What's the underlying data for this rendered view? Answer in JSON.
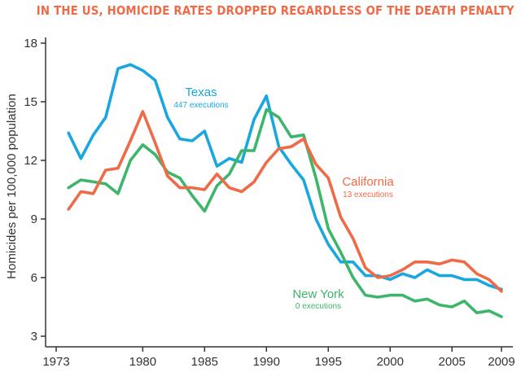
{
  "chart_data": {
    "type": "line",
    "title": "IN THE US, HOMICIDE RATES DROPPED REGARDLESS OF THE DEATH PENALTY",
    "xlabel": "",
    "ylabel": "Homicides per 100,000 population",
    "xlim": [
      1973,
      2009
    ],
    "ylim": [
      3,
      18
    ],
    "x_ticks": [
      1973,
      1980,
      1985,
      1990,
      1995,
      2000,
      2005,
      2009
    ],
    "y_ticks": [
      3,
      6,
      9,
      12,
      15,
      18
    ],
    "grid": false,
    "legend": "inline labels next to each line",
    "x": [
      1974,
      1975,
      1976,
      1977,
      1978,
      1979,
      1980,
      1981,
      1982,
      1983,
      1984,
      1985,
      1986,
      1987,
      1988,
      1989,
      1990,
      1991,
      1992,
      1993,
      1994,
      1995,
      1996,
      1997,
      1998,
      1999,
      2000,
      2001,
      2002,
      2003,
      2004,
      2005,
      2006,
      2007,
      2008,
      2009
    ],
    "series": [
      {
        "name": "Texas",
        "note": "447 executions",
        "color": "#1aa7e0",
        "values": [
          13.4,
          12.1,
          13.3,
          14.2,
          16.7,
          16.9,
          16.6,
          16.1,
          14.2,
          13.1,
          13.0,
          13.5,
          11.7,
          12.1,
          11.9,
          14.1,
          15.3,
          12.7,
          11.8,
          11.0,
          9.0,
          7.7,
          6.8,
          6.8,
          6.1,
          6.1,
          5.9,
          6.2,
          6.0,
          6.4,
          6.1,
          6.1,
          5.9,
          5.9,
          5.6,
          5.4
        ]
      },
      {
        "name": "California",
        "note": "13 executions",
        "color": "#ef6a47",
        "values": [
          9.5,
          10.4,
          10.3,
          11.5,
          11.6,
          13.0,
          14.5,
          12.9,
          11.2,
          10.6,
          10.6,
          10.5,
          11.3,
          10.6,
          10.4,
          10.9,
          11.9,
          12.6,
          12.7,
          13.1,
          11.8,
          11.1,
          9.1,
          8.0,
          6.5,
          6.0,
          6.1,
          6.4,
          6.8,
          6.8,
          6.7,
          6.9,
          6.8,
          6.2,
          5.9,
          5.3
        ]
      },
      {
        "name": "New York",
        "note": "0 executions",
        "color": "#3db56a",
        "values": [
          10.6,
          11.0,
          10.9,
          10.8,
          10.3,
          12.0,
          12.8,
          12.3,
          11.4,
          11.1,
          10.2,
          9.4,
          10.7,
          11.3,
          12.5,
          12.5,
          14.6,
          14.2,
          13.2,
          13.3,
          11.1,
          8.5,
          7.3,
          6.0,
          5.1,
          5.0,
          5.1,
          5.1,
          4.8,
          4.9,
          4.6,
          4.5,
          4.8,
          4.2,
          4.3,
          4.0
        ]
      }
    ]
  }
}
